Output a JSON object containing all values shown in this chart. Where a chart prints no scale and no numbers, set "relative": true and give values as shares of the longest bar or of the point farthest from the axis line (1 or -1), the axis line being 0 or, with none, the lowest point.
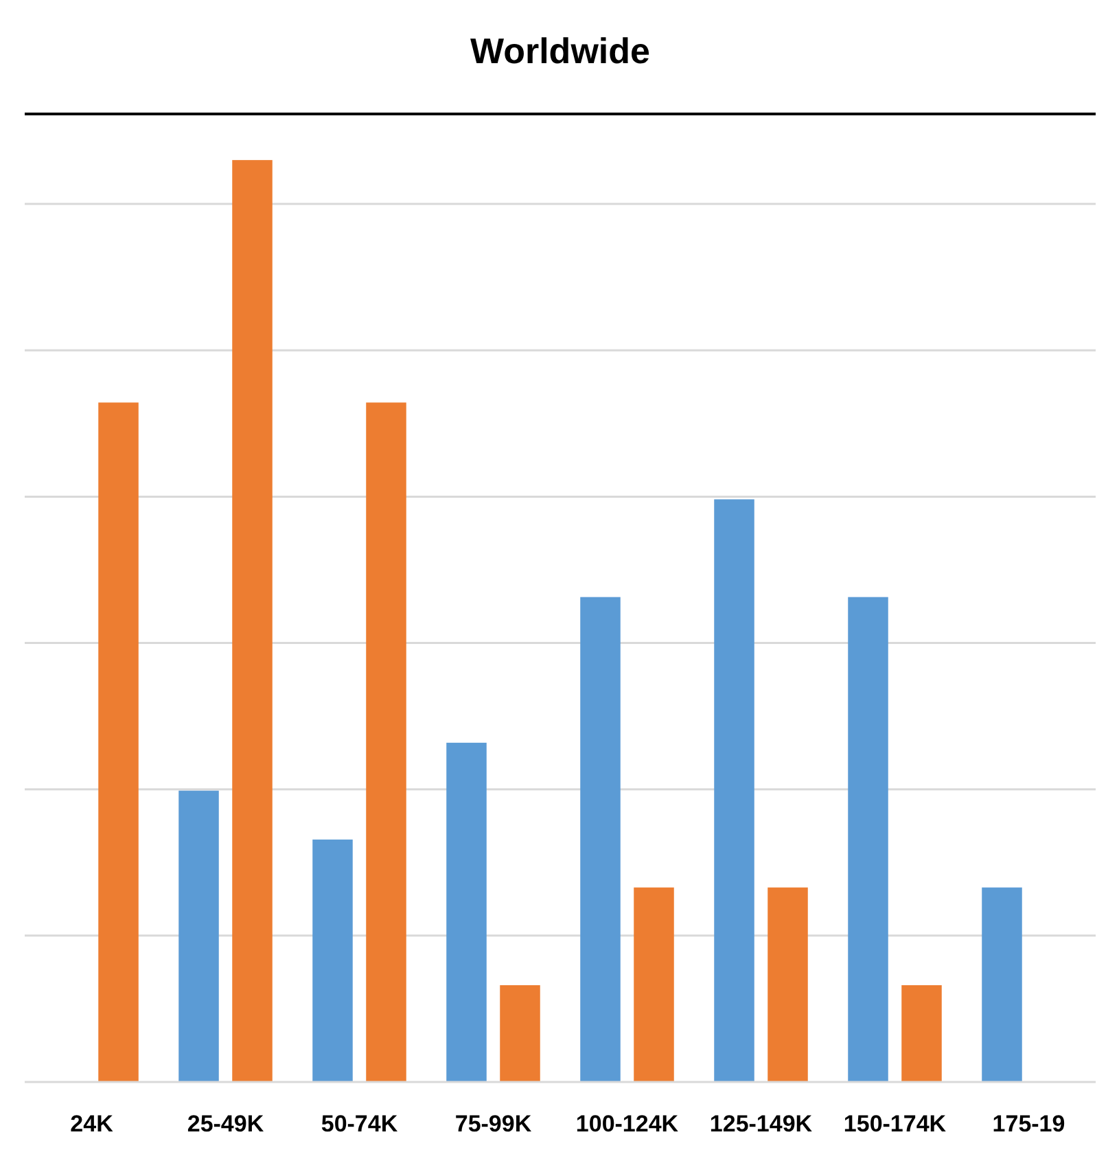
{
  "chart_data": {
    "type": "bar",
    "title": "Worldwide",
    "relative": true,
    "categories": [
      "24K",
      "25-49K",
      "50-74K",
      "75-99K",
      "100-124K",
      "125-149K",
      "150-174K",
      "175-19"
    ],
    "series": [
      {
        "color": "#5b9bd5",
        "values": [
          null,
          0.316,
          0.263,
          0.368,
          0.526,
          0.632,
          0.526,
          0.211
        ]
      },
      {
        "color": "#ed7d31",
        "values": [
          0.737,
          1,
          0.737,
          0.105,
          0.211,
          0.211,
          0.105,
          null
        ]
      }
    ],
    "grid": true
  }
}
